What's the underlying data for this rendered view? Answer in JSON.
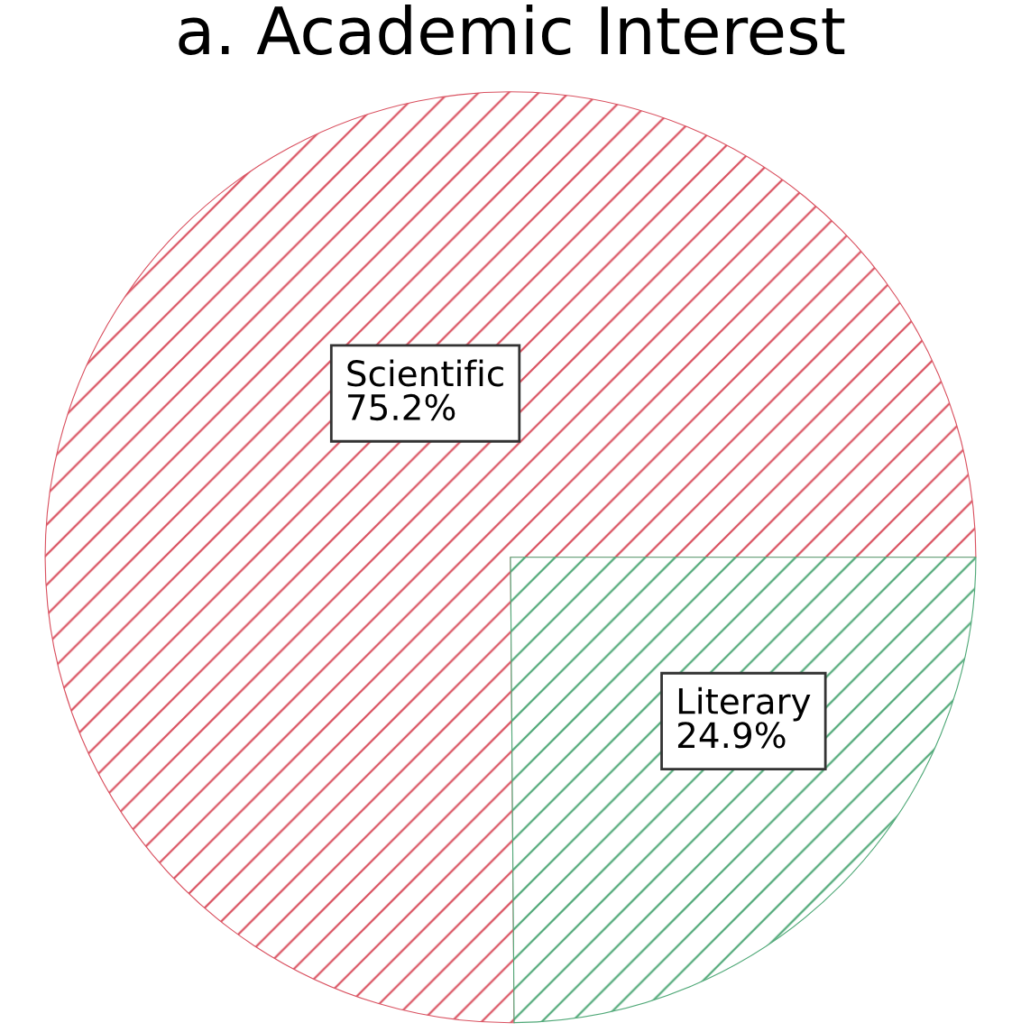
{
  "chart_data": {
    "type": "pie",
    "title": "a. Academic Interest",
    "categories": [
      "Scientific",
      "Literary"
    ],
    "values": [
      75.2,
      24.9
    ],
    "value_labels": [
      "75.2%",
      "24.9%"
    ],
    "colors": [
      "#d9505f",
      "#4fa877"
    ],
    "legend": false
  }
}
